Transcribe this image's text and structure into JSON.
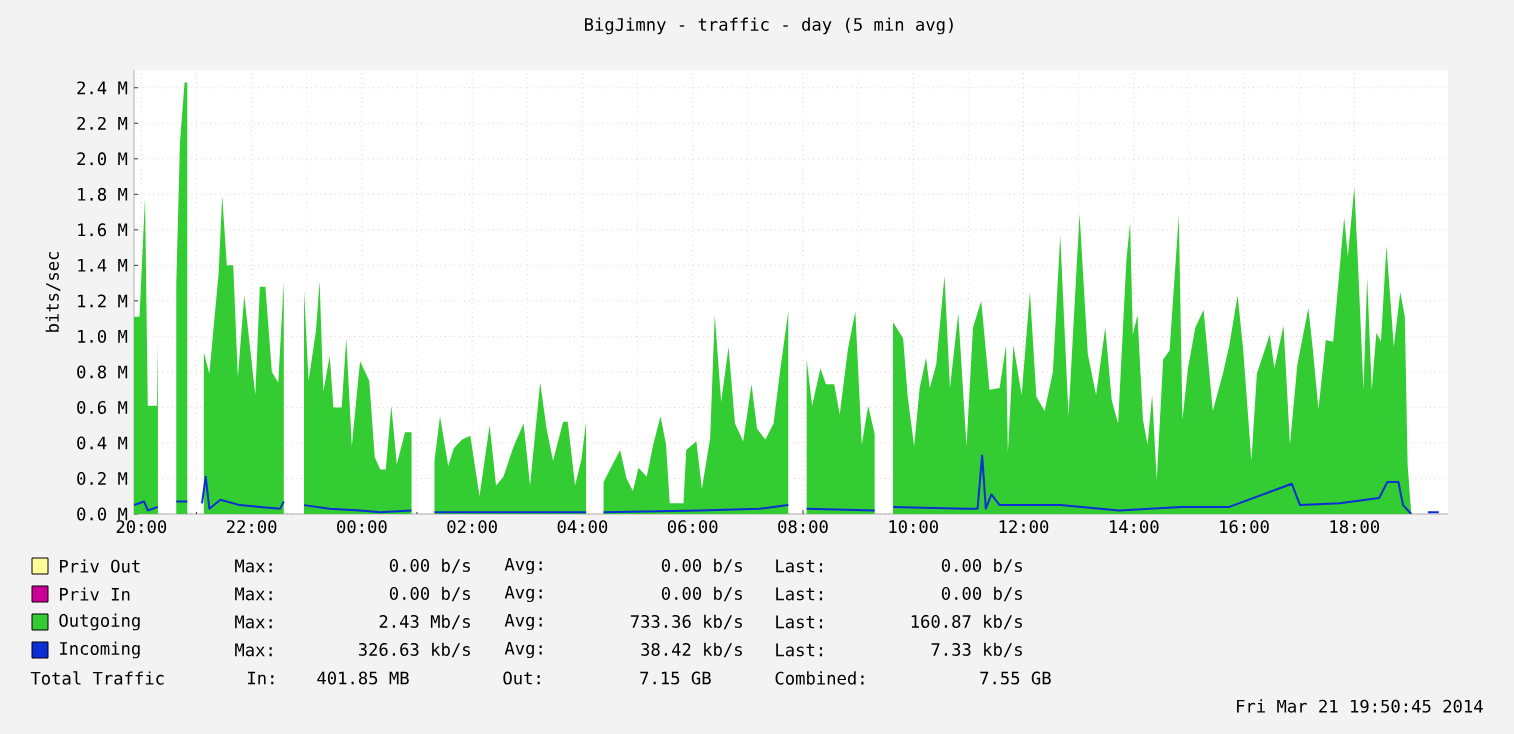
{
  "chart_data": {
    "type": "area",
    "title": "BigJimny - traffic - day (5 min avg)",
    "ylabel": "bits/sec",
    "xlim": [
      "2014-03-20T19:52",
      "2014-03-21T19:42"
    ],
    "ylim": [
      0,
      2.5
    ],
    "xticks": [
      {
        "value": "2014-03-20T20:00",
        "label": "20:00"
      },
      {
        "value": "2014-03-20T22:00",
        "label": "22:00"
      },
      {
        "value": "2014-03-21T00:00",
        "label": "00:00"
      },
      {
        "value": "2014-03-21T02:00",
        "label": "02:00"
      },
      {
        "value": "2014-03-21T04:00",
        "label": "04:00"
      },
      {
        "value": "2014-03-21T06:00",
        "label": "06:00"
      },
      {
        "value": "2014-03-21T08:00",
        "label": "08:00"
      },
      {
        "value": "2014-03-21T10:00",
        "label": "10:00"
      },
      {
        "value": "2014-03-21T12:00",
        "label": "12:00"
      },
      {
        "value": "2014-03-21T14:00",
        "label": "14:00"
      },
      {
        "value": "2014-03-21T16:00",
        "label": "16:00"
      },
      {
        "value": "2014-03-21T18:00",
        "label": "18:00"
      }
    ],
    "yticks": [
      {
        "value": 0,
        "label": "0.0 M"
      },
      {
        "value": 0.2,
        "label": "0.2 M"
      },
      {
        "value": 0.4,
        "label": "0.4 M"
      },
      {
        "value": 0.6,
        "label": "0.6 M"
      },
      {
        "value": 0.8,
        "label": "0.8 M"
      },
      {
        "value": 1.0,
        "label": "1.0 M"
      },
      {
        "value": 1.2,
        "label": "1.2 M"
      },
      {
        "value": 1.4,
        "label": "1.4 M"
      },
      {
        "value": 1.6,
        "label": "1.6 M"
      },
      {
        "value": 1.8,
        "label": "1.8 M"
      },
      {
        "value": 2.0,
        "label": "2.0 M"
      },
      {
        "value": 2.2,
        "label": "2.2 M"
      },
      {
        "value": 2.4,
        "label": "2.4 M"
      }
    ],
    "grid": true,
    "legend": "bottom",
    "series": [
      {
        "name": "Priv Out",
        "color": "#ffff99"
      },
      {
        "name": "Priv In",
        "color": "#cc0099"
      },
      {
        "name": "Outgoing",
        "color": "#33cc33",
        "x": [
          "2014-03-20T19:52",
          "2014-03-20T19:58",
          "2014-03-20T20:04",
          "2014-03-20T20:07",
          "2014-03-20T20:17",
          "2014-03-20T20:18",
          "2014-03-20T20:20",
          "2014-03-20T20:38",
          "2014-03-20T20:42",
          "2014-03-20T20:47",
          "2014-03-20T20:50",
          "2014-03-20T20:55",
          "2014-03-20T21:08",
          "2014-03-20T21:14",
          "2014-03-20T21:24",
          "2014-03-20T21:28",
          "2014-03-20T21:33",
          "2014-03-20T21:40",
          "2014-03-20T21:45",
          "2014-03-20T21:52",
          "2014-03-20T21:58",
          "2014-03-20T22:04",
          "2014-03-20T22:09",
          "2014-03-20T22:15",
          "2014-03-20T22:22",
          "2014-03-20T22:29",
          "2014-03-20T22:35",
          "2014-03-20T22:44",
          "2014-03-20T22:57",
          "2014-03-20T23:02",
          "2014-03-20T23:10",
          "2014-03-20T23:14",
          "2014-03-20T23:18",
          "2014-03-20T23:25",
          "2014-03-20T23:29",
          "2014-03-20T23:38",
          "2014-03-20T23:43",
          "2014-03-20T23:49",
          "2014-03-20T23:58",
          "2014-03-21T00:08",
          "2014-03-21T00:14",
          "2014-03-21T00:20",
          "2014-03-21T00:26",
          "2014-03-21T00:32",
          "2014-03-21T00:38",
          "2014-03-21T00:47",
          "2014-03-21T00:54",
          "2014-03-21T01:05",
          "2014-03-21T01:19",
          "2014-03-21T01:25",
          "2014-03-21T01:34",
          "2014-03-21T01:40",
          "2014-03-21T01:49",
          "2014-03-21T01:58",
          "2014-03-21T02:08",
          "2014-03-21T02:19",
          "2014-03-21T02:26",
          "2014-03-21T02:34",
          "2014-03-21T02:45",
          "2014-03-21T02:56",
          "2014-03-21T03:03",
          "2014-03-21T03:14",
          "2014-03-21T03:21",
          "2014-03-21T03:28",
          "2014-03-21T03:39",
          "2014-03-21T03:44",
          "2014-03-21T03:52",
          "2014-03-21T03:59",
          "2014-03-21T04:04",
          "2014-03-21T04:14",
          "2014-03-21T04:23",
          "2014-03-21T04:41",
          "2014-03-21T04:48",
          "2014-03-21T04:55",
          "2014-03-21T05:01",
          "2014-03-21T05:10",
          "2014-03-21T05:17",
          "2014-03-21T05:25",
          "2014-03-21T05:31",
          "2014-03-21T05:35",
          "2014-03-21T05:50",
          "2014-03-21T05:53",
          "2014-03-21T06:04",
          "2014-03-21T06:10",
          "2014-03-21T06:19",
          "2014-03-21T06:24",
          "2014-03-21T06:31",
          "2014-03-21T06:39",
          "2014-03-21T06:46",
          "2014-03-21T06:55",
          "2014-03-21T07:04",
          "2014-03-21T07:10",
          "2014-03-21T07:19",
          "2014-03-21T07:28",
          "2014-03-21T07:35",
          "2014-03-21T07:44",
          "2014-03-21T07:55",
          "2014-03-21T08:04",
          "2014-03-21T08:10",
          "2014-03-21T08:19",
          "2014-03-21T08:25",
          "2014-03-21T08:34",
          "2014-03-21T08:40",
          "2014-03-21T08:49",
          "2014-03-21T08:57",
          "2014-03-21T09:04",
          "2014-03-21T09:11",
          "2014-03-21T09:18",
          "2014-03-21T09:28",
          "2014-03-21T09:38",
          "2014-03-21T09:49",
          "2014-03-21T09:54",
          "2014-03-21T10:01",
          "2014-03-21T10:07",
          "2014-03-21T10:14",
          "2014-03-21T10:18",
          "2014-03-21T10:25",
          "2014-03-21T10:34",
          "2014-03-21T10:40",
          "2014-03-21T10:49",
          "2014-03-21T10:58",
          "2014-03-21T11:05",
          "2014-03-21T11:14",
          "2014-03-21T11:23",
          "2014-03-21T11:34",
          "2014-03-21T11:41",
          "2014-03-21T11:43",
          "2014-03-21T11:49",
          "2014-03-21T11:58",
          "2014-03-21T12:07",
          "2014-03-21T12:14",
          "2014-03-21T12:23",
          "2014-03-21T12:32",
          "2014-03-21T12:40",
          "2014-03-21T12:49",
          "2014-03-21T13:01",
          "2014-03-21T13:10",
          "2014-03-21T13:19",
          "2014-03-21T13:29",
          "2014-03-21T13:36",
          "2014-03-21T13:43",
          "2014-03-21T13:52",
          "2014-03-21T13:56",
          "2014-03-21T13:59",
          "2014-03-21T14:04",
          "2014-03-21T14:10",
          "2014-03-21T14:15",
          "2014-03-21T14:20",
          "2014-03-21T14:25",
          "2014-03-21T14:32",
          "2014-03-21T14:39",
          "2014-03-21T14:49",
          "2014-03-21T14:53",
          "2014-03-21T14:59",
          "2014-03-21T15:07",
          "2014-03-21T15:16",
          "2014-03-21T15:26",
          "2014-03-21T15:37",
          "2014-03-21T15:44",
          "2014-03-21T15:53",
          "2014-03-21T15:59",
          "2014-03-21T16:08",
          "2014-03-21T16:14",
          "2014-03-21T16:21",
          "2014-03-21T16:28",
          "2014-03-21T16:33",
          "2014-03-21T16:43",
          "2014-03-21T16:50",
          "2014-03-21T16:58",
          "2014-03-21T17:10",
          "2014-03-21T17:15",
          "2014-03-21T17:21",
          "2014-03-21T17:29",
          "2014-03-21T17:37",
          "2014-03-21T17:44",
          "2014-03-21T17:49",
          "2014-03-21T17:53",
          "2014-03-21T18:00",
          "2014-03-21T18:04",
          "2014-03-21T18:10",
          "2014-03-21T18:14",
          "2014-03-21T18:19",
          "2014-03-21T18:24",
          "2014-03-21T18:29",
          "2014-03-21T18:35",
          "2014-03-21T18:43",
          "2014-03-21T18:50",
          "2014-03-21T18:55",
          "2014-03-21T18:58",
          "2014-03-21T19:02",
          "2014-03-21T19:16",
          "2014-03-21T19:36"
        ],
        "values": [
          1.11,
          1.11,
          1.78,
          0.61,
          0.61,
          0.97,
          null,
          1.29,
          2.09,
          2.43,
          2.43,
          null,
          0.91,
          0.79,
          1.35,
          1.79,
          1.4,
          1.4,
          0.77,
          1.23,
          0.95,
          0.67,
          1.28,
          1.28,
          0.8,
          0.74,
          1.31,
          null,
          1.26,
          0.75,
          1.03,
          1.31,
          0.69,
          0.89,
          0.6,
          0.6,
          0.99,
          0.38,
          0.86,
          0.75,
          0.32,
          0.25,
          0.25,
          0.61,
          0.28,
          0.46,
          0.46,
          null,
          0.3,
          0.55,
          0.27,
          0.37,
          0.42,
          0.44,
          0.1,
          0.5,
          0.16,
          0.21,
          0.38,
          0.51,
          0.16,
          0.74,
          0.48,
          0.3,
          0.52,
          0.52,
          0.16,
          0.31,
          0.52,
          null,
          0.18,
          0.36,
          0.2,
          0.13,
          0.26,
          0.21,
          0.39,
          0.55,
          0.39,
          0.06,
          0.06,
          0.36,
          0.41,
          0.14,
          0.43,
          1.12,
          0.63,
          0.94,
          0.51,
          0.41,
          0.73,
          0.48,
          0.42,
          0.51,
          0.8,
          1.14,
          null,
          0.87,
          0.61,
          0.82,
          0.73,
          0.73,
          0.56,
          0.93,
          1.14,
          0.39,
          0.61,
          0.45,
          null,
          1.08,
          0.99,
          0.66,
          0.38,
          0.71,
          0.88,
          0.71,
          0.84,
          1.34,
          0.71,
          1.13,
          0.38,
          1.05,
          1.2,
          0.7,
          0.71,
          0.95,
          0.34,
          0.95,
          0.67,
          1.25,
          0.66,
          0.58,
          0.8,
          1.57,
          0.55,
          1.69,
          0.9,
          0.67,
          1.05,
          0.64,
          0.51,
          1.43,
          1.64,
          1.01,
          1.12,
          0.53,
          0.39,
          0.67,
          0.19,
          0.87,
          0.92,
          1.68,
          0.53,
          0.82,
          1.05,
          1.15,
          0.58,
          0.79,
          0.95,
          1.23,
          0.93,
          0.3,
          0.79,
          0.9,
          1.01,
          0.82,
          1.06,
          0.39,
          0.84,
          1.16,
          0.92,
          0.59,
          0.98,
          0.97,
          1.38,
          1.67,
          1.45,
          1.84,
          1.41,
          0.7,
          1.33,
          0.7,
          1.02,
          0.97,
          1.51,
          0.94,
          1.25,
          1.11,
          0.28,
          0,
          null,
          0.16
        ]
      },
      {
        "name": "Incoming",
        "color": "#0b2fd4",
        "type": "line",
        "x": [
          "2014-03-20T19:52",
          "2014-03-20T20:03",
          "2014-03-20T20:07",
          "2014-03-20T20:18",
          "2014-03-20T20:20",
          "2014-03-20T20:38",
          "2014-03-20T20:50",
          "2014-03-20T20:55",
          "2014-03-20T21:06",
          "2014-03-20T21:10",
          "2014-03-20T21:14",
          "2014-03-20T21:26",
          "2014-03-20T21:47",
          "2014-03-20T22:09",
          "2014-03-20T22:31",
          "2014-03-20T22:35",
          "2014-03-20T22:44",
          "2014-03-20T22:57",
          "2014-03-20T23:25",
          "2014-03-20T23:58",
          "2014-03-21T00:20",
          "2014-03-21T00:54",
          "2014-03-21T01:05",
          "2014-03-21T01:19",
          "2014-03-21T04:04",
          "2014-03-21T04:14",
          "2014-03-21T04:23",
          "2014-03-21T06:08",
          "2014-03-21T07:13",
          "2014-03-21T07:44",
          "2014-03-21T07:55",
          "2014-03-21T08:04",
          "2014-03-21T09:18",
          "2014-03-21T09:28",
          "2014-03-21T09:38",
          "2014-03-21T10:55",
          "2014-03-21T11:10",
          "2014-03-21T11:15",
          "2014-03-21T11:19",
          "2014-03-21T11:25",
          "2014-03-21T11:34",
          "2014-03-21T12:40",
          "2014-03-21T13:44",
          "2014-03-21T14:52",
          "2014-03-21T15:44",
          "2014-03-21T16:52",
          "2014-03-21T17:01",
          "2014-03-21T17:44",
          "2014-03-21T18:27",
          "2014-03-21T18:36",
          "2014-03-21T18:48",
          "2014-03-21T18:53",
          "2014-03-21T19:02",
          "2014-03-21T19:16",
          "2014-03-21T19:20",
          "2014-03-21T19:32"
        ],
        "values": [
          0.05,
          0.07,
          0.02,
          0.04,
          null,
          0.07,
          0.07,
          null,
          0.06,
          0.21,
          0.03,
          0.08,
          0.05,
          0.04,
          0.03,
          0.07,
          null,
          0.05,
          0.03,
          0.02,
          0.01,
          0.02,
          null,
          0.01,
          0.01,
          null,
          0.01,
          0.02,
          0.03,
          0.05,
          null,
          0.03,
          0.02,
          null,
          0.04,
          0.03,
          0.03,
          0.33,
          0.03,
          0.11,
          0.05,
          0.05,
          0.02,
          0.04,
          0.04,
          0.17,
          0.05,
          0.06,
          0.09,
          0.18,
          0.18,
          0.05,
          0,
          null,
          0.01,
          0.01
        ]
      }
    ],
    "annotations": [
      "Max:",
      "0.00 b/s",
      "Avg:",
      "0.00 b/s",
      "Last:",
      "0.00 b/s",
      "Max:",
      "0.00 b/s",
      "Avg:",
      "0.00 b/s",
      "Last:",
      "0.00 b/s",
      "Max:",
      "2.43 Mb/s",
      "Avg:",
      "733.36 kb/s",
      "Last:",
      "160.87 kb/s",
      "Max:",
      "326.63 kb/s",
      "Avg:",
      "38.42 kb/s",
      "Last:",
      "7.33 kb/s",
      "Total Traffic",
      "In:",
      "401.85 MB",
      "Out:",
      "7.15 GB",
      "Combined:",
      "7.55 GB",
      "Fri Mar 21 19:50:45 2014"
    ]
  }
}
